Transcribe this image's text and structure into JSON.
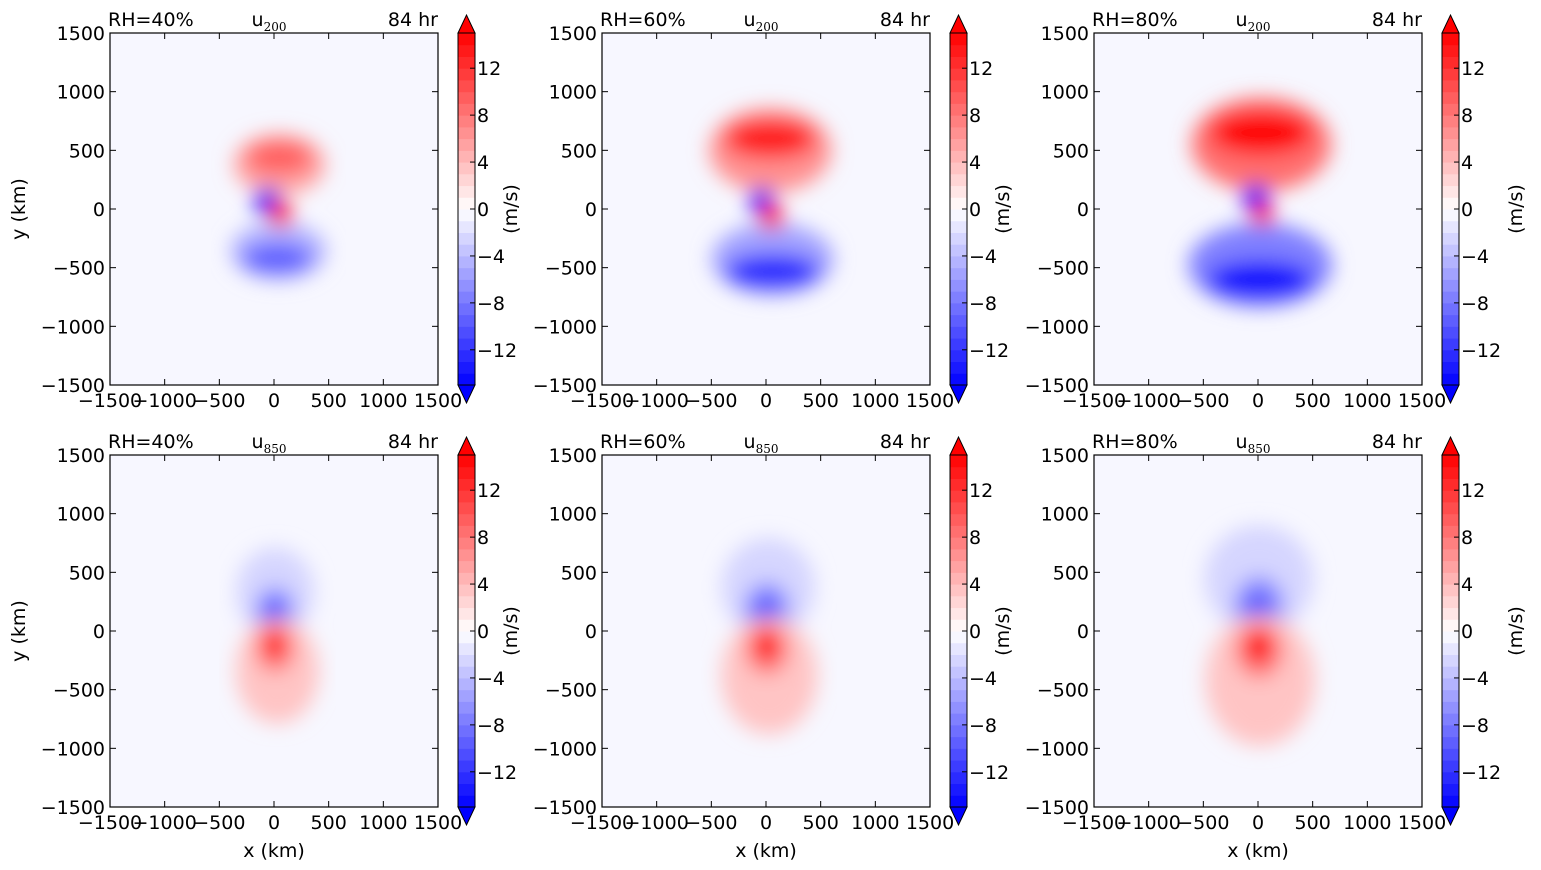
{
  "figure": {
    "colorbar_label": "(m/s)",
    "colorbar_ticks": [
      -12,
      -8,
      -4,
      0,
      4,
      8,
      12
    ],
    "colorbar_range": [
      -15,
      15
    ],
    "colormap": {
      "negative": "#0000ff",
      "zero": "#ffffff",
      "positive": "#ff0000"
    },
    "levels_step": 1
  },
  "chart_data": [
    {
      "type": "heatmap",
      "row": 0,
      "col": 0,
      "title_left": "RH=40%",
      "title_center_base": "u",
      "title_center_sub": "200",
      "title_right": "84 hr",
      "xlabel": "",
      "ylabel": "y (km)",
      "xlim": [
        -1500,
        1500
      ],
      "ylim": [
        -1500,
        1500
      ],
      "xticks": [
        -1500,
        -1000,
        -500,
        0,
        500,
        1000,
        1500
      ],
      "yticks": [
        -1500,
        -1000,
        -500,
        0,
        500,
        1000,
        1500
      ],
      "features": [
        {
          "cx": 50,
          "cy": 380,
          "rx": 420,
          "ry": 260,
          "value": 5
        },
        {
          "cx": 50,
          "cy": 440,
          "rx": 300,
          "ry": 140,
          "value": 9
        },
        {
          "cx": 40,
          "cy": -360,
          "rx": 440,
          "ry": 250,
          "value": -5
        },
        {
          "cx": 30,
          "cy": -420,
          "rx": 320,
          "ry": 130,
          "value": -10
        },
        {
          "cx": -60,
          "cy": 60,
          "rx": 130,
          "ry": 120,
          "value": -15
        },
        {
          "cx": 60,
          "cy": -40,
          "rx": 110,
          "ry": 110,
          "value": 15
        }
      ]
    },
    {
      "type": "heatmap",
      "row": 0,
      "col": 1,
      "title_left": "RH=60%",
      "title_center_base": "u",
      "title_center_sub": "200",
      "title_right": "84 hr",
      "xlabel": "",
      "ylabel": "(m/s)",
      "xlim": [
        -1500,
        1500
      ],
      "ylim": [
        -1500,
        1500
      ],
      "xticks": [
        -1500,
        -1000,
        -500,
        0,
        500,
        1000,
        1500
      ],
      "yticks": [
        -1500,
        -1000,
        -500,
        0,
        500,
        1000,
        1500
      ],
      "features": [
        {
          "cx": 40,
          "cy": 500,
          "rx": 560,
          "ry": 360,
          "value": 6
        },
        {
          "cx": 40,
          "cy": 600,
          "rx": 420,
          "ry": 170,
          "value": 13
        },
        {
          "cx": 60,
          "cy": -430,
          "rx": 560,
          "ry": 310,
          "value": -6
        },
        {
          "cx": 60,
          "cy": -530,
          "rx": 430,
          "ry": 150,
          "value": -13
        },
        {
          "cx": -40,
          "cy": 60,
          "rx": 120,
          "ry": 120,
          "value": -15
        },
        {
          "cx": 50,
          "cy": -60,
          "rx": 110,
          "ry": 110,
          "value": 15
        }
      ]
    },
    {
      "type": "heatmap",
      "row": 0,
      "col": 2,
      "title_left": "RH=80%",
      "title_center_base": "u",
      "title_center_sub": "200",
      "title_right": "84 hr",
      "xlabel": "",
      "ylabel": "(m/s)",
      "xlim": [
        -1500,
        1500
      ],
      "ylim": [
        -1500,
        1500
      ],
      "xticks": [
        -1500,
        -1000,
        -500,
        0,
        500,
        1000,
        1500
      ],
      "yticks": [
        -1500,
        -1000,
        -500,
        0,
        500,
        1000,
        1500
      ],
      "features": [
        {
          "cx": 30,
          "cy": 550,
          "rx": 640,
          "ry": 400,
          "value": 8
        },
        {
          "cx": 30,
          "cy": 650,
          "rx": 470,
          "ry": 190,
          "value": 15
        },
        {
          "cx": 20,
          "cy": -480,
          "rx": 660,
          "ry": 360,
          "value": -8
        },
        {
          "cx": 20,
          "cy": -600,
          "rx": 480,
          "ry": 160,
          "value": -15
        },
        {
          "cx": -20,
          "cy": 90,
          "rx": 130,
          "ry": 120,
          "value": -15
        },
        {
          "cx": 40,
          "cy": -40,
          "rx": 110,
          "ry": 90,
          "value": 15
        }
      ]
    },
    {
      "type": "heatmap",
      "row": 1,
      "col": 0,
      "title_left": "RH=40%",
      "title_center_base": "u",
      "title_center_sub": "850",
      "title_right": "84 hr",
      "xlabel": "x (km)",
      "ylabel": "y (km)",
      "xlim": [
        -1500,
        1500
      ],
      "ylim": [
        -1500,
        1500
      ],
      "xticks": [
        -1500,
        -1000,
        -500,
        0,
        500,
        1000,
        1500
      ],
      "yticks": [
        -1500,
        -1000,
        -500,
        0,
        500,
        1000,
        1500
      ],
      "features": [
        {
          "cx": 10,
          "cy": 330,
          "rx": 360,
          "ry": 380,
          "value": -3
        },
        {
          "cx": 10,
          "cy": 170,
          "rx": 170,
          "ry": 200,
          "value": -8
        },
        {
          "cx": 0,
          "cy": 100,
          "rx": 120,
          "ry": 110,
          "value": -15
        },
        {
          "cx": 30,
          "cy": -340,
          "rx": 380,
          "ry": 450,
          "value": 3
        },
        {
          "cx": 10,
          "cy": -150,
          "rx": 170,
          "ry": 200,
          "value": 8
        },
        {
          "cx": 0,
          "cy": -100,
          "rx": 120,
          "ry": 110,
          "value": 15
        }
      ]
    },
    {
      "type": "heatmap",
      "row": 1,
      "col": 1,
      "title_left": "RH=60%",
      "title_center_base": "u",
      "title_center_sub": "850",
      "title_right": "84 hr",
      "xlabel": "x (km)",
      "ylabel": "(m/s)",
      "xlim": [
        -1500,
        1500
      ],
      "ylim": [
        -1500,
        1500
      ],
      "xticks": [
        -1500,
        -1000,
        -500,
        0,
        500,
        1000,
        1500
      ],
      "yticks": [
        -1500,
        -1000,
        -500,
        0,
        500,
        1000,
        1500
      ],
      "features": [
        {
          "cx": 20,
          "cy": 370,
          "rx": 430,
          "ry": 420,
          "value": -3
        },
        {
          "cx": 10,
          "cy": 190,
          "rx": 200,
          "ry": 220,
          "value": -8
        },
        {
          "cx": 0,
          "cy": 110,
          "rx": 130,
          "ry": 120,
          "value": -15
        },
        {
          "cx": 30,
          "cy": -380,
          "rx": 440,
          "ry": 500,
          "value": 3
        },
        {
          "cx": 10,
          "cy": -160,
          "rx": 190,
          "ry": 210,
          "value": 8
        },
        {
          "cx": 0,
          "cy": -110,
          "rx": 130,
          "ry": 120,
          "value": 15
        }
      ]
    },
    {
      "type": "heatmap",
      "row": 1,
      "col": 2,
      "title_left": "RH=80%",
      "title_center_base": "u",
      "title_center_sub": "850",
      "title_right": "84 hr",
      "xlabel": "x (km)",
      "ylabel": "(m/s)",
      "xlim": [
        -1500,
        1500
      ],
      "ylim": [
        -1500,
        1500
      ],
      "xticks": [
        -1500,
        -1000,
        -500,
        0,
        500,
        1000,
        1500
      ],
      "yticks": [
        -1500,
        -1000,
        -500,
        0,
        500,
        1000,
        1500
      ],
      "features": [
        {
          "cx": 10,
          "cy": 440,
          "rx": 500,
          "ry": 460,
          "value": -3
        },
        {
          "cx": 10,
          "cy": 220,
          "rx": 220,
          "ry": 240,
          "value": -8
        },
        {
          "cx": 0,
          "cy": 120,
          "rx": 140,
          "ry": 130,
          "value": -15
        },
        {
          "cx": 20,
          "cy": -420,
          "rx": 500,
          "ry": 560,
          "value": 3
        },
        {
          "cx": 10,
          "cy": -170,
          "rx": 210,
          "ry": 230,
          "value": 8
        },
        {
          "cx": 0,
          "cy": -120,
          "rx": 140,
          "ry": 130,
          "value": 15
        }
      ]
    }
  ]
}
